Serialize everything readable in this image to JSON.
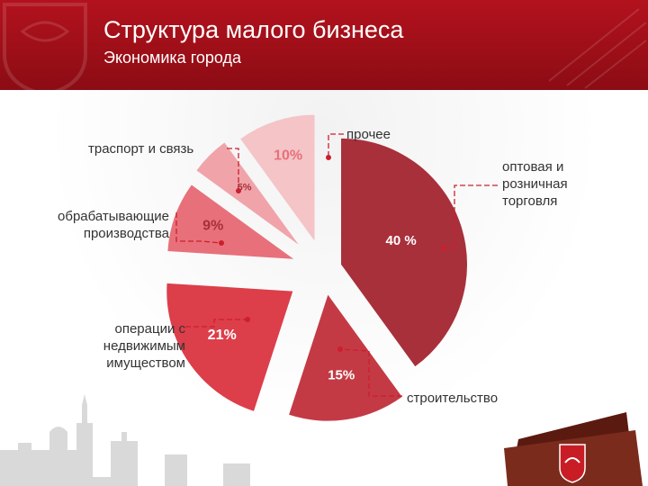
{
  "header": {
    "title": "Структура малого бизнеса",
    "subtitle": "Экономика города"
  },
  "chart_data": {
    "type": "pie",
    "title": "",
    "slices": [
      {
        "name": "оптовая и розничная торговля",
        "value": 40,
        "label": "40 %",
        "color": "#a8303a"
      },
      {
        "name": "строительство",
        "value": 15,
        "label": "15%",
        "color": "#c33a45"
      },
      {
        "name": "операции с недвижимым имуществом",
        "value": 21,
        "label": "21%",
        "color": "#dc3e4a"
      },
      {
        "name": "обрабатывающие производства",
        "value": 9,
        "label": "9%",
        "color": "#e8707a"
      },
      {
        "name": "траспорт и связь",
        "value": 5,
        "label": "5%",
        "color": "#f0a4aa"
      },
      {
        "name": "прочее",
        "value": 10,
        "label": "10%",
        "color": "#f4c4c7"
      }
    ]
  },
  "labels": {
    "trade": "оптовая и\nрозничная\nторговля",
    "construction": "строительство",
    "real_estate": "операции с\nнедвижимым\nимуществом",
    "manufacturing": "обрабатывающие\nпроизводства",
    "transport": "траспорт и связь",
    "other": "прочее"
  },
  "colors": {
    "header_red": "#b3121d",
    "leader_line": "#cc1f2d"
  },
  "icons": [
    "coat-of-arms-icon",
    "folder-icon",
    "city-skyline-icon"
  ]
}
